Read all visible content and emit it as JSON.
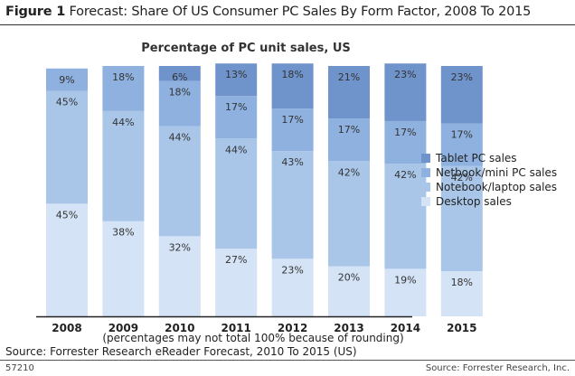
{
  "figure": {
    "label": "Figure 1",
    "title": "Forecast: Share Of US Consumer PC Sales By Form Factor, 2008 To 2015"
  },
  "footnote": "(percentages may not total 100% because of rounding)",
  "source": "Source: Forrester Research eReader Forecast, 2010 To 2015 (US)",
  "footer": {
    "id": "57210",
    "credit": "Source: Forrester Research, Inc."
  },
  "chart_data": {
    "type": "bar",
    "stacked": true,
    "title": "Percentage of PC unit sales, US",
    "xlabel": "",
    "ylabel": "",
    "ylim": [
      0,
      100
    ],
    "categories": [
      "2008",
      "2009",
      "2010",
      "2011",
      "2012",
      "2013",
      "2014",
      "2015"
    ],
    "series": [
      {
        "name": "Desktop sales",
        "color": "#d4e3f5",
        "values": [
          45,
          38,
          32,
          27,
          23,
          20,
          19,
          18
        ]
      },
      {
        "name": "Notebook/laptop sales",
        "color": "#a9c6e9",
        "values": [
          45,
          44,
          44,
          44,
          43,
          42,
          42,
          42
        ]
      },
      {
        "name": "Netbook/mini PC sales",
        "color": "#8eb1df",
        "values": [
          9,
          18,
          18,
          17,
          17,
          17,
          17,
          17
        ]
      },
      {
        "name": "Tablet PC sales",
        "color": "#6f93cb",
        "values": [
          0,
          0,
          6,
          13,
          18,
          21,
          23,
          23
        ]
      }
    ],
    "legend_order": [
      "Tablet PC sales",
      "Netbook/mini PC sales",
      "Notebook/laptop sales",
      "Desktop sales"
    ],
    "legend_position": "right"
  }
}
